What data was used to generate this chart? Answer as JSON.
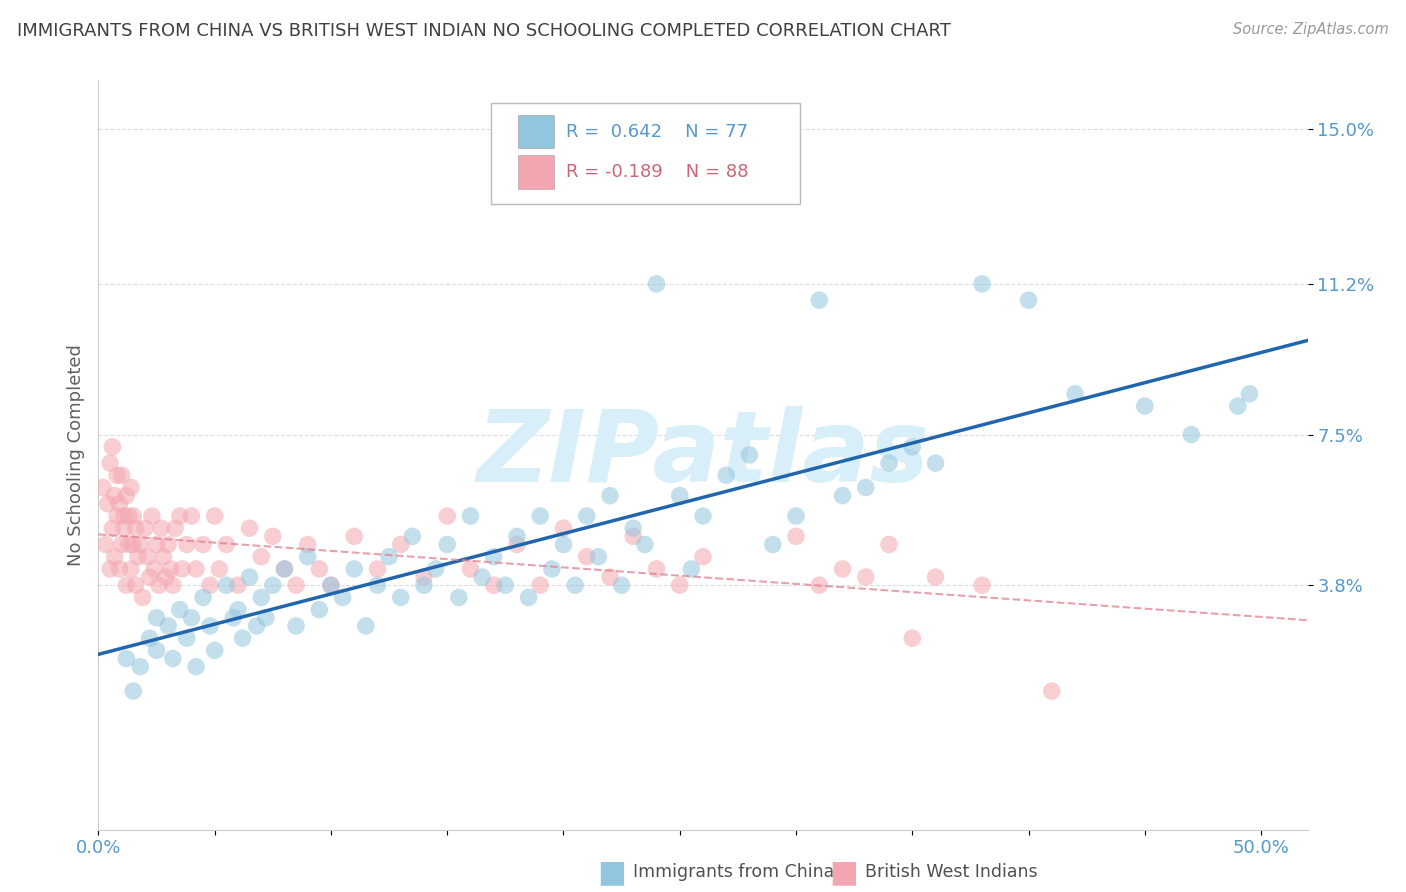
{
  "title": "IMMIGRANTS FROM CHINA VS BRITISH WEST INDIAN NO SCHOOLING COMPLETED CORRELATION CHART",
  "source": "Source: ZipAtlas.com",
  "ylabel": "No Schooling Completed",
  "xlim": [
    0.0,
    0.52
  ],
  "ylim": [
    -0.022,
    0.162
  ],
  "ytick_positions": [
    0.038,
    0.075,
    0.112,
    0.15
  ],
  "ytick_labels": [
    "3.8%",
    "7.5%",
    "11.2%",
    "15.0%"
  ],
  "xtick_positions": [
    0.0,
    0.05,
    0.1,
    0.15,
    0.2,
    0.25,
    0.3,
    0.35,
    0.4,
    0.45,
    0.5
  ],
  "xtick_labels": [
    "0.0%",
    "",
    "",
    "",
    "",
    "",
    "",
    "",
    "",
    "",
    "50.0%"
  ],
  "legend_R1": "R =  0.642",
  "legend_N1": "N = 77",
  "legend_R2": "R = -0.189",
  "legend_N2": "N = 88",
  "legend_label1": "Immigrants from China",
  "legend_label2": "British West Indians",
  "color_china": "#92c5de",
  "color_bwi": "#f4a6b0",
  "color_china_line": "#2166ac",
  "color_bwi_line": "#e08090",
  "watermark": "ZIPatlas",
  "china_x": [
    0.012,
    0.015,
    0.018,
    0.022,
    0.025,
    0.025,
    0.03,
    0.032,
    0.035,
    0.038,
    0.04,
    0.042,
    0.045,
    0.048,
    0.05,
    0.055,
    0.058,
    0.06,
    0.062,
    0.065,
    0.068,
    0.07,
    0.072,
    0.075,
    0.08,
    0.085,
    0.09,
    0.095,
    0.1,
    0.105,
    0.11,
    0.115,
    0.12,
    0.125,
    0.13,
    0.135,
    0.14,
    0.145,
    0.15,
    0.155,
    0.16,
    0.165,
    0.17,
    0.175,
    0.18,
    0.185,
    0.19,
    0.195,
    0.2,
    0.205,
    0.21,
    0.215,
    0.22,
    0.225,
    0.23,
    0.235,
    0.24,
    0.25,
    0.255,
    0.26,
    0.27,
    0.28,
    0.29,
    0.3,
    0.31,
    0.32,
    0.33,
    0.34,
    0.35,
    0.36,
    0.38,
    0.4,
    0.42,
    0.45,
    0.47,
    0.49,
    0.495
  ],
  "china_y": [
    0.02,
    0.012,
    0.018,
    0.025,
    0.022,
    0.03,
    0.028,
    0.02,
    0.032,
    0.025,
    0.03,
    0.018,
    0.035,
    0.028,
    0.022,
    0.038,
    0.03,
    0.032,
    0.025,
    0.04,
    0.028,
    0.035,
    0.03,
    0.038,
    0.042,
    0.028,
    0.045,
    0.032,
    0.038,
    0.035,
    0.042,
    0.028,
    0.038,
    0.045,
    0.035,
    0.05,
    0.038,
    0.042,
    0.048,
    0.035,
    0.055,
    0.04,
    0.045,
    0.038,
    0.05,
    0.035,
    0.055,
    0.042,
    0.048,
    0.038,
    0.055,
    0.045,
    0.06,
    0.038,
    0.052,
    0.048,
    0.112,
    0.06,
    0.042,
    0.055,
    0.065,
    0.07,
    0.048,
    0.055,
    0.108,
    0.06,
    0.062,
    0.068,
    0.072,
    0.068,
    0.112,
    0.108,
    0.085,
    0.082,
    0.075,
    0.082,
    0.085
  ],
  "bwi_x": [
    0.002,
    0.003,
    0.004,
    0.005,
    0.005,
    0.006,
    0.006,
    0.007,
    0.007,
    0.008,
    0.008,
    0.009,
    0.009,
    0.01,
    0.01,
    0.011,
    0.011,
    0.012,
    0.012,
    0.013,
    0.013,
    0.014,
    0.014,
    0.015,
    0.015,
    0.016,
    0.016,
    0.017,
    0.018,
    0.019,
    0.02,
    0.021,
    0.022,
    0.023,
    0.024,
    0.025,
    0.026,
    0.027,
    0.028,
    0.029,
    0.03,
    0.031,
    0.032,
    0.033,
    0.035,
    0.036,
    0.038,
    0.04,
    0.042,
    0.045,
    0.048,
    0.05,
    0.052,
    0.055,
    0.06,
    0.065,
    0.07,
    0.075,
    0.08,
    0.085,
    0.09,
    0.095,
    0.1,
    0.11,
    0.12,
    0.13,
    0.14,
    0.15,
    0.16,
    0.17,
    0.18,
    0.19,
    0.2,
    0.21,
    0.22,
    0.23,
    0.24,
    0.25,
    0.26,
    0.3,
    0.31,
    0.32,
    0.33,
    0.34,
    0.35,
    0.36,
    0.38,
    0.41
  ],
  "bwi_y": [
    0.062,
    0.048,
    0.058,
    0.042,
    0.068,
    0.052,
    0.072,
    0.045,
    0.06,
    0.055,
    0.065,
    0.042,
    0.058,
    0.048,
    0.065,
    0.052,
    0.055,
    0.06,
    0.038,
    0.048,
    0.055,
    0.042,
    0.062,
    0.048,
    0.055,
    0.038,
    0.052,
    0.045,
    0.048,
    0.035,
    0.052,
    0.045,
    0.04,
    0.055,
    0.042,
    0.048,
    0.038,
    0.052,
    0.045,
    0.04,
    0.048,
    0.042,
    0.038,
    0.052,
    0.055,
    0.042,
    0.048,
    0.055,
    0.042,
    0.048,
    0.038,
    0.055,
    0.042,
    0.048,
    0.038,
    0.052,
    0.045,
    0.05,
    0.042,
    0.038,
    0.048,
    0.042,
    0.038,
    0.05,
    0.042,
    0.048,
    0.04,
    0.055,
    0.042,
    0.038,
    0.048,
    0.038,
    0.052,
    0.045,
    0.04,
    0.05,
    0.042,
    0.038,
    0.045,
    0.05,
    0.038,
    0.042,
    0.04,
    0.048,
    0.025,
    0.04,
    0.038,
    0.012
  ],
  "grid_color": "#dddddd",
  "bg_color": "#ffffff",
  "title_color": "#404040",
  "tick_label_color": "#5599cc",
  "watermark_color": "#d8eef8",
  "title_fontsize": 13,
  "tick_fontsize": 13,
  "ylabel_fontsize": 13
}
